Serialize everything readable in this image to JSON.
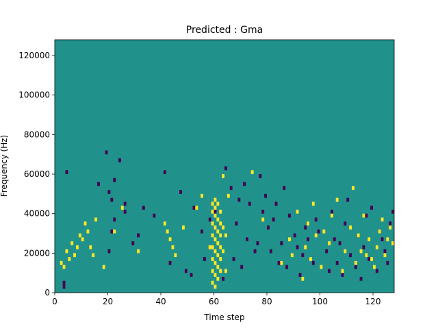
{
  "chart_data": {
    "type": "heatmap",
    "title": "Predicted : Gma",
    "xlabel": "Time step",
    "ylabel": "Frequency (Hz)",
    "xlim": [
      0,
      128
    ],
    "ylim": [
      0,
      128000
    ],
    "xticks": [
      0,
      20,
      40,
      60,
      80,
      100,
      120
    ],
    "yticks": [
      0,
      20000,
      40000,
      60000,
      80000,
      100000,
      120000
    ],
    "xtick_labels": [
      "0",
      "20",
      "40",
      "60",
      "80",
      "100",
      "120"
    ],
    "ytick_labels": [
      "0",
      "20000",
      "40000",
      "60000",
      "80000",
      "100000",
      "120000"
    ],
    "colormap": "viridis",
    "colors": {
      "background": "#21918c",
      "low": "#440154",
      "high": "#fde725"
    },
    "grid": false,
    "cell_size": {
      "time_step": 1,
      "frequency_hz": 2000
    },
    "note_cells": {
      "low": [
        [
          3,
          2
        ],
        [
          3,
          4
        ],
        [
          4,
          60
        ],
        [
          16,
          54
        ],
        [
          19,
          70
        ],
        [
          20,
          20
        ],
        [
          20,
          50
        ],
        [
          21,
          30
        ],
        [
          21,
          46
        ],
        [
          22,
          36
        ],
        [
          22,
          56
        ],
        [
          24,
          66
        ],
        [
          26,
          40
        ],
        [
          26,
          44
        ],
        [
          29,
          24
        ],
        [
          31,
          28
        ],
        [
          33,
          42
        ],
        [
          37,
          38
        ],
        [
          41,
          60
        ],
        [
          43,
          14
        ],
        [
          47,
          50
        ],
        [
          49,
          10
        ],
        [
          51,
          8
        ],
        [
          52,
          42
        ],
        [
          55,
          30
        ],
        [
          56,
          16
        ],
        [
          58,
          36
        ],
        [
          60,
          40
        ],
        [
          63,
          6
        ],
        [
          64,
          62
        ],
        [
          66,
          52
        ],
        [
          67,
          16
        ],
        [
          68,
          34
        ],
        [
          69,
          46
        ],
        [
          70,
          12
        ],
        [
          71,
          54
        ],
        [
          72,
          26
        ],
        [
          73,
          44
        ],
        [
          75,
          20
        ],
        [
          76,
          24
        ],
        [
          77,
          58
        ],
        [
          78,
          40
        ],
        [
          79,
          48
        ],
        [
          80,
          32
        ],
        [
          81,
          20
        ],
        [
          82,
          36
        ],
        [
          83,
          44
        ],
        [
          84,
          14
        ],
        [
          85,
          24
        ],
        [
          86,
          52
        ],
        [
          87,
          12
        ],
        [
          88,
          38
        ],
        [
          90,
          28
        ],
        [
          91,
          22
        ],
        [
          92,
          8
        ],
        [
          93,
          18
        ],
        [
          94,
          32
        ],
        [
          95,
          26
        ],
        [
          97,
          14
        ],
        [
          98,
          36
        ],
        [
          99,
          30
        ],
        [
          102,
          20
        ],
        [
          103,
          10
        ],
        [
          104,
          40
        ],
        [
          105,
          26
        ],
        [
          106,
          14
        ],
        [
          107,
          24
        ],
        [
          108,
          8
        ],
        [
          109,
          34
        ],
        [
          110,
          46
        ],
        [
          111,
          18
        ],
        [
          113,
          12
        ],
        [
          114,
          28
        ],
        [
          115,
          6
        ],
        [
          116,
          22
        ],
        [
          117,
          38
        ],
        [
          118,
          16
        ],
        [
          119,
          42
        ],
        [
          121,
          10
        ],
        [
          122,
          30
        ],
        [
          123,
          26
        ],
        [
          124,
          20
        ],
        [
          125,
          14
        ],
        [
          126,
          34
        ],
        [
          127,
          40
        ]
      ],
      "high": [
        [
          2,
          14
        ],
        [
          3,
          12
        ],
        [
          4,
          20
        ],
        [
          5,
          16
        ],
        [
          6,
          24
        ],
        [
          7,
          18
        ],
        [
          8,
          22
        ],
        [
          9,
          28
        ],
        [
          10,
          26
        ],
        [
          11,
          34
        ],
        [
          12,
          30
        ],
        [
          13,
          22
        ],
        [
          14,
          18
        ],
        [
          15,
          36
        ],
        [
          18,
          12
        ],
        [
          22,
          30
        ],
        [
          25,
          42
        ],
        [
          31,
          20
        ],
        [
          41,
          34
        ],
        [
          42,
          30
        ],
        [
          43,
          26
        ],
        [
          44,
          22
        ],
        [
          45,
          18
        ],
        [
          48,
          32
        ],
        [
          53,
          42
        ],
        [
          55,
          48
        ],
        [
          58,
          22
        ],
        [
          59,
          4
        ],
        [
          59,
          10
        ],
        [
          59,
          16
        ],
        [
          59,
          22
        ],
        [
          59,
          28
        ],
        [
          59,
          34
        ],
        [
          59,
          40
        ],
        [
          59,
          44
        ],
        [
          60,
          2
        ],
        [
          60,
          8
        ],
        [
          60,
          14
        ],
        [
          60,
          20
        ],
        [
          60,
          26
        ],
        [
          60,
          32
        ],
        [
          60,
          38
        ],
        [
          60,
          42
        ],
        [
          60,
          46
        ],
        [
          61,
          6
        ],
        [
          61,
          12
        ],
        [
          61,
          18
        ],
        [
          61,
          24
        ],
        [
          61,
          30
        ],
        [
          61,
          36
        ],
        [
          61,
          44
        ],
        [
          62,
          10
        ],
        [
          62,
          16
        ],
        [
          62,
          22
        ],
        [
          62,
          28
        ],
        [
          62,
          34
        ],
        [
          62,
          40
        ],
        [
          63,
          20
        ],
        [
          63,
          32
        ],
        [
          63,
          58
        ],
        [
          64,
          10
        ],
        [
          64,
          28
        ],
        [
          65,
          48
        ],
        [
          74,
          60
        ],
        [
          78,
          36
        ],
        [
          85,
          14
        ],
        [
          88,
          26
        ],
        [
          89,
          18
        ],
        [
          91,
          40
        ],
        [
          93,
          6
        ],
        [
          94,
          22
        ],
        [
          95,
          34
        ],
        [
          96,
          16
        ],
        [
          97,
          44
        ],
        [
          98,
          28
        ],
        [
          100,
          12
        ],
        [
          101,
          30
        ],
        [
          103,
          24
        ],
        [
          104,
          38
        ],
        [
          106,
          46
        ],
        [
          108,
          10
        ],
        [
          109,
          20
        ],
        [
          111,
          32
        ],
        [
          112,
          52
        ],
        [
          113,
          14
        ],
        [
          114,
          28
        ],
        [
          115,
          20
        ],
        [
          116,
          38
        ],
        [
          117,
          18
        ],
        [
          118,
          26
        ],
        [
          119,
          16
        ],
        [
          120,
          12
        ],
        [
          121,
          22
        ],
        [
          122,
          30
        ],
        [
          123,
          36
        ],
        [
          124,
          18
        ],
        [
          125,
          26
        ],
        [
          126,
          32
        ],
        [
          127,
          24
        ]
      ]
    }
  }
}
